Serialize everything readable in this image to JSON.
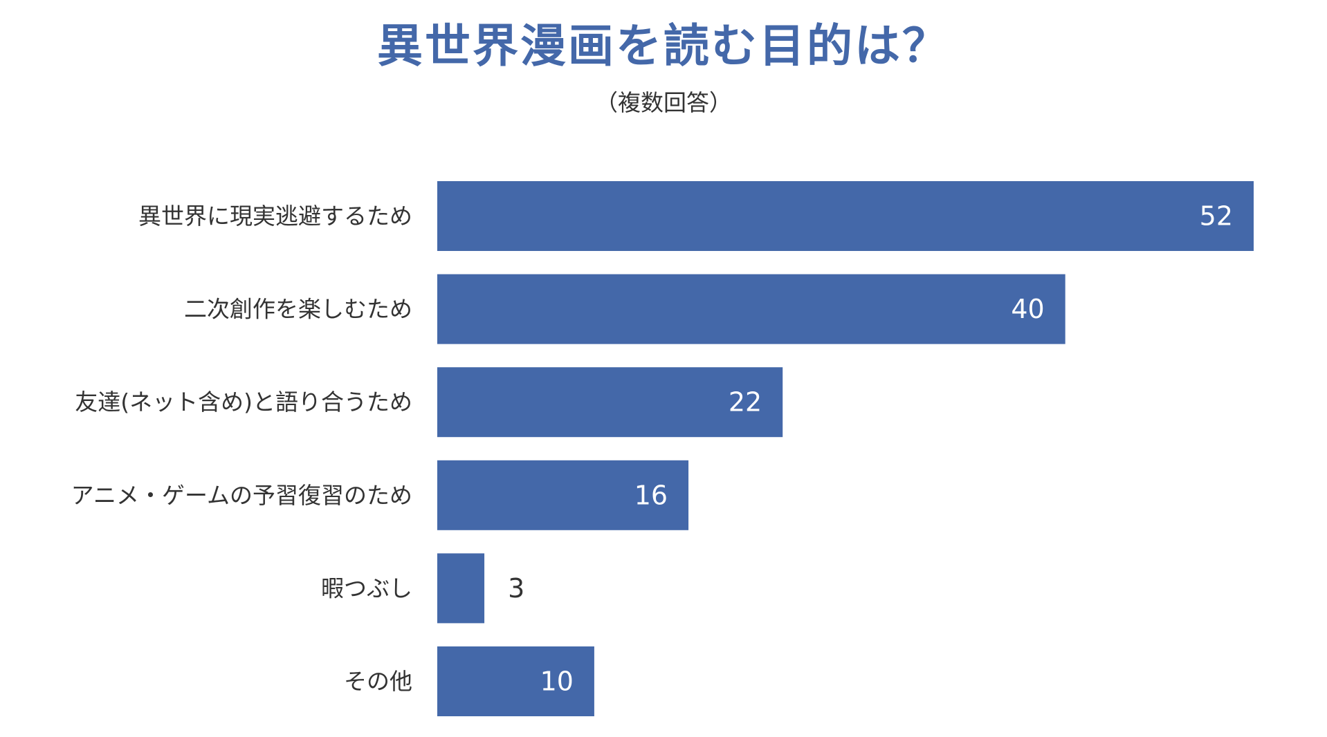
{
  "chart_data": {
    "type": "bar",
    "orientation": "horizontal",
    "title": "異世界漫画を読む目的は？",
    "subtitle": "（複数回答）",
    "categories": [
      "異世界に現実逃避するため",
      "二次創作を楽しむため",
      "友達(ネット含め)と語り合うため",
      "アニメ・ゲームの予習復習のため",
      "暇つぶし",
      "その他"
    ],
    "values": [
      52,
      40,
      22,
      16,
      3,
      10
    ],
    "xlim": [
      0,
      52
    ],
    "grid": false,
    "legend": "none",
    "bar_color": "#4468a9",
    "value_label_inside_color": "#ffffff",
    "value_label_outside_color": "#333333"
  }
}
